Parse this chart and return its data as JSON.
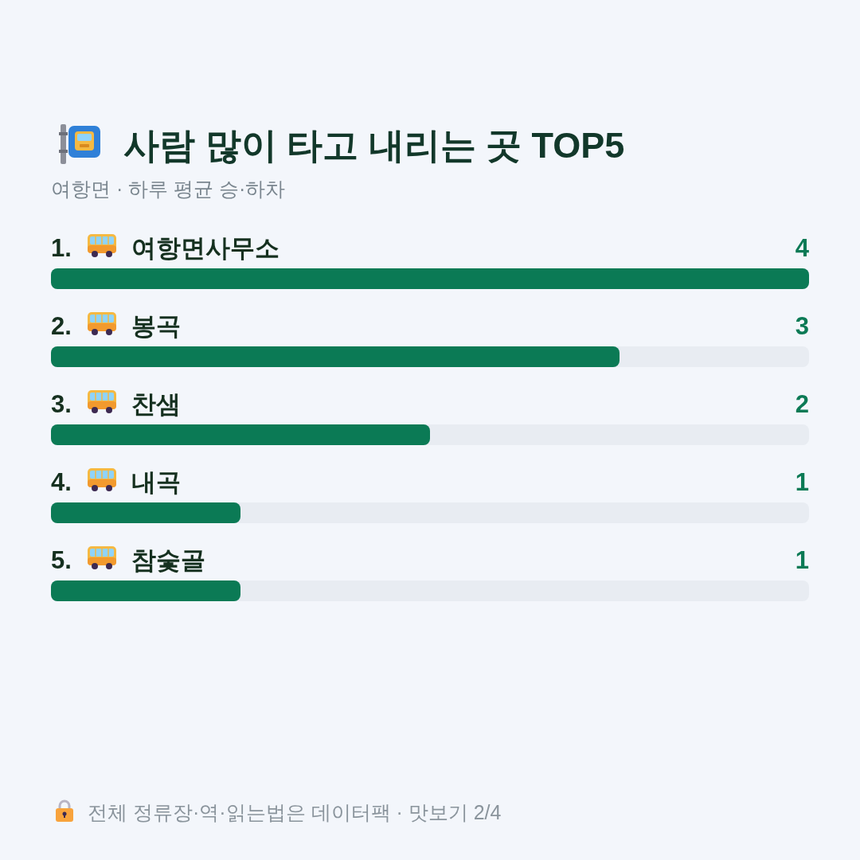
{
  "chart_data": {
    "type": "bar",
    "orientation": "horizontal",
    "title": "사람 많이 타고 내리는 곳 TOP5",
    "subtitle": "여항면 · 하루 평균 승·하차",
    "categories": [
      "1. 여항면사무소",
      "2. 봉곡",
      "3. 찬샘",
      "4. 내곡",
      "5. 참숯골"
    ],
    "values": [
      4,
      3,
      2,
      1,
      1
    ],
    "color": "#0b7a55",
    "data_labels": true,
    "annotations": [
      "전체 정류장·역·읽는법은 데이터팩 · 맛보기 2/4"
    ]
  }
}
